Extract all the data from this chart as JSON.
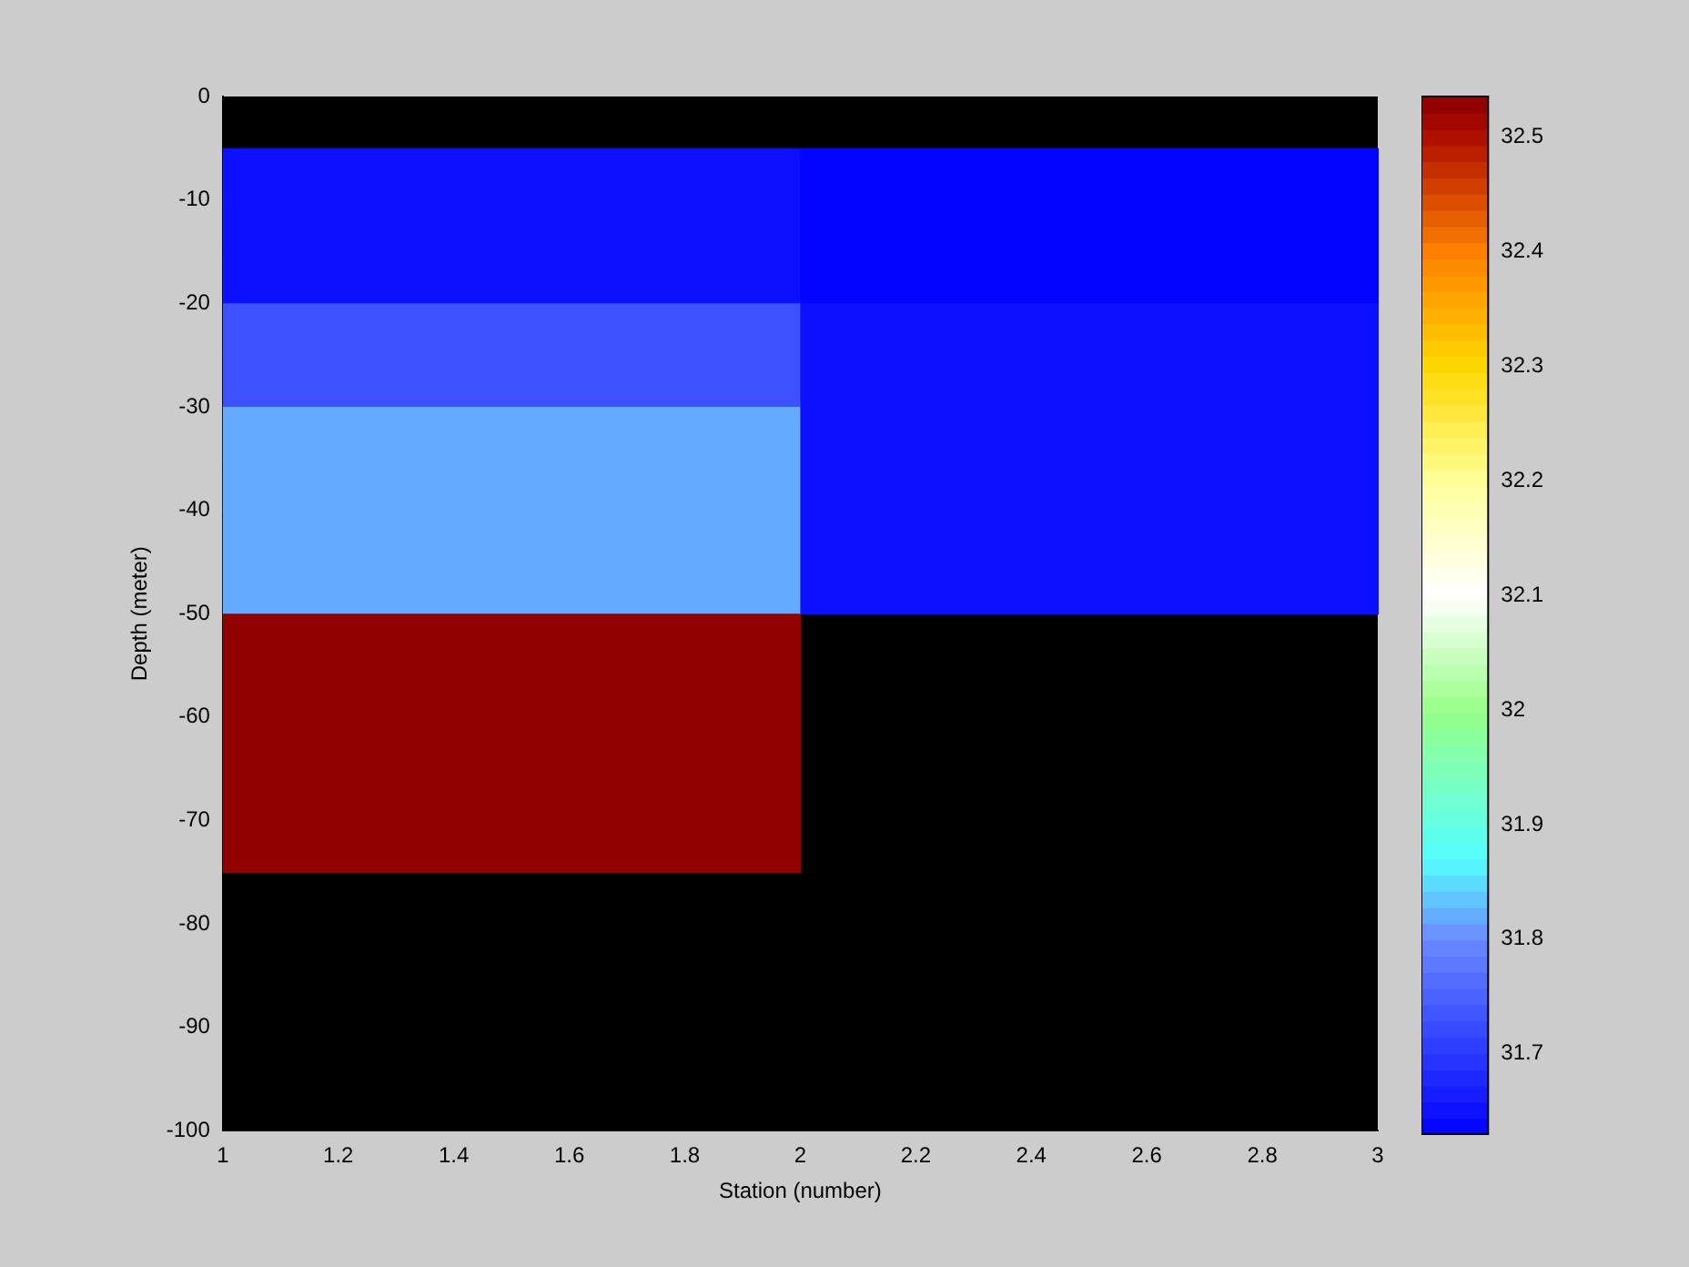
{
  "chart_data": {
    "type": "heatmap",
    "xlabel": "Station (number)",
    "ylabel": "Depth (meter)",
    "x": [
      1.5,
      2.5
    ],
    "y": [
      -7.5,
      -12.5,
      -17.5,
      -22.5,
      -27.5,
      -32.5,
      -37.5,
      -42.5,
      -47.5,
      -52.5,
      -57.5,
      -62.5,
      -67.5,
      -72.5
    ],
    "cells": [
      [
        31.65,
        31.635
      ],
      [
        31.65,
        31.635
      ],
      [
        31.65,
        31.635
      ],
      [
        31.73,
        31.65
      ],
      [
        31.73,
        31.65
      ],
      [
        31.82,
        31.65
      ],
      [
        31.82,
        31.65
      ],
      [
        31.82,
        31.65
      ],
      [
        31.82,
        31.65
      ],
      [
        32.53,
        null
      ],
      [
        32.53,
        null
      ],
      [
        32.53,
        null
      ],
      [
        32.53,
        null
      ],
      [
        32.53,
        null
      ]
    ],
    "xlim": [
      1,
      3
    ],
    "xticks": [
      1,
      1.2,
      1.4,
      1.6,
      1.8,
      2,
      2.2,
      2.4,
      2.6,
      2.8,
      3
    ],
    "ylim": [
      -100,
      0
    ],
    "yticks": [
      -100,
      -90,
      -80,
      -70,
      -60,
      -50,
      -40,
      -30,
      -20,
      -10,
      0
    ],
    "clim": [
      31.63,
      32.535
    ],
    "cticks": [
      31.7,
      31.8,
      31.9,
      32,
      32.1,
      32.2,
      32.3,
      32.4,
      32.5
    ]
  }
}
